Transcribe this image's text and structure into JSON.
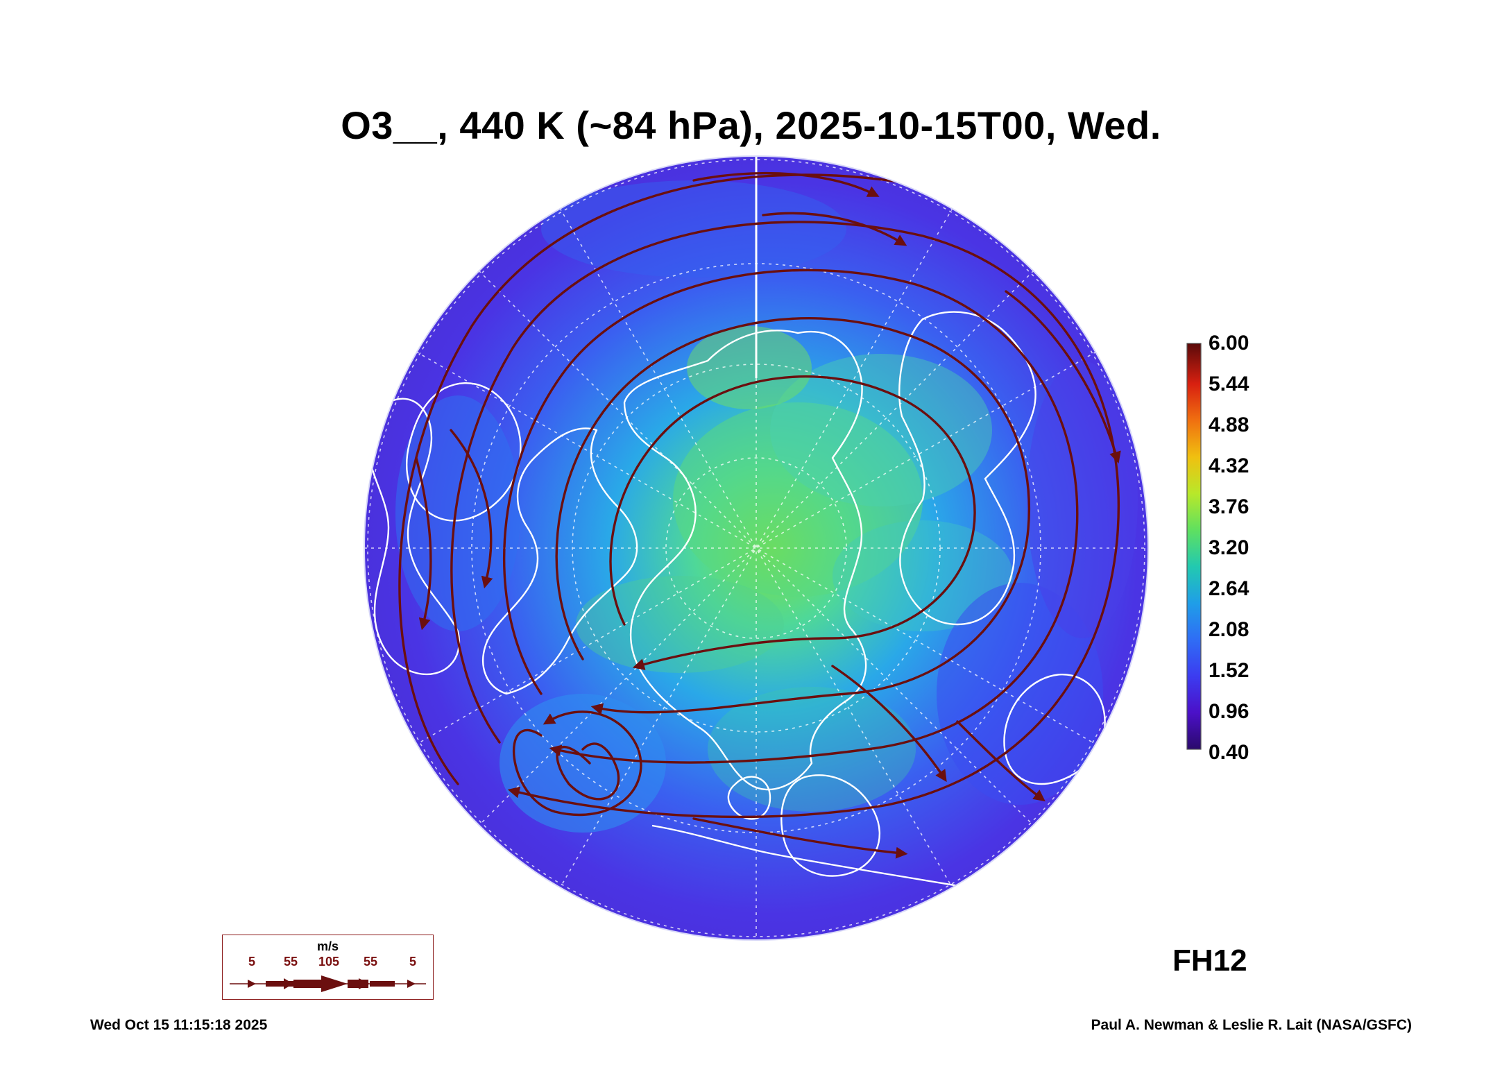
{
  "title": "O3__, 440 K (~84 hPa), 2025-10-15T00, Wed.",
  "colorbar": {
    "labels": [
      "6.00",
      "5.44",
      "4.88",
      "4.32",
      "3.76",
      "3.20",
      "2.64",
      "2.08",
      "1.52",
      "0.96",
      "0.40"
    ],
    "min": 0.4,
    "max": 6.0,
    "colors": [
      "#2a0a6b",
      "#4b10c8",
      "#3c3cf0",
      "#2f6df5",
      "#1f9ee8",
      "#22c9b0",
      "#5fe060",
      "#b8e82a",
      "#f0c010",
      "#f07010",
      "#d82010",
      "#5a0a0a"
    ]
  },
  "forecast_hour": "FH12",
  "wind_legend": {
    "unit": "m/s",
    "ticks": [
      "5",
      "55",
      "105",
      "55",
      "5"
    ]
  },
  "footer": {
    "timestamp": "Wed Oct 15 11:15:18 2025",
    "credit": "Paul A. Newman & Leslie R. Lait (NASA/GSFC)"
  },
  "map": {
    "projection": "north polar stereographic",
    "field_colors": {
      "background": "#4a2fe0",
      "low": "#3a4df0",
      "mid": "#2a8af0",
      "high": "#3fd8a0",
      "peak": "#7fe040"
    },
    "streamline_color": "#6b0f0f",
    "coastline_color": "#ffffff",
    "grid_color": "#ffffff"
  }
}
